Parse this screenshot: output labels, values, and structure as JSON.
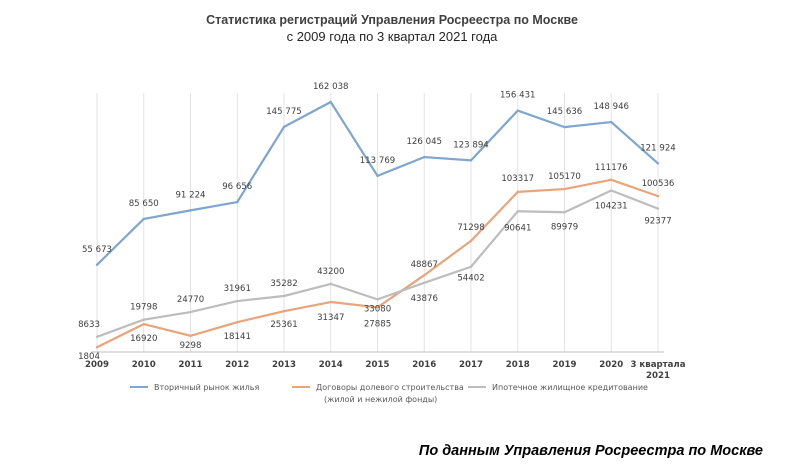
{
  "chart_data": {
    "type": "line",
    "title": "Статистика регистраций Управления Росреестра по Москве",
    "subtitle": "с 2009 года по 3 квартал 2021 года",
    "categories": [
      "2009",
      "2010",
      "2011",
      "2012",
      "2013",
      "2014",
      "2015",
      "2016",
      "2017",
      "2018",
      "2019",
      "2020",
      "3 квартала 2021"
    ],
    "series": [
      {
        "name": "Вторичный рынок жилья",
        "color": "#7ea6ce",
        "values": [
          55673,
          85650,
          91224,
          96656,
          145775,
          162038,
          113769,
          126045,
          123894,
          156431,
          145636,
          148946,
          121924
        ],
        "labels": [
          "55 673",
          "85 650",
          "91 224",
          "96 656",
          "145 775",
          "162 038",
          "113 769",
          "126 045",
          "123 894",
          "156 431",
          "145 636",
          "148 946",
          "121 924"
        ]
      },
      {
        "name": "Договоры долевого строительства (жилой и нежилой фонды)",
        "color": "#e8a47a",
        "values": [
          1804,
          16920,
          9298,
          18141,
          25361,
          31347,
          27885,
          48867,
          71298,
          103317,
          105170,
          111176,
          100536
        ],
        "labels": [
          "1804",
          "16920",
          "9298",
          "18141",
          "25361",
          "31347",
          "27885",
          "48867",
          "71298",
          "103317",
          "105170",
          "111176",
          "100536"
        ]
      },
      {
        "name": "Ипотечное жилищное кредитование",
        "color": "#bdbdbd",
        "values": [
          8633,
          19798,
          24770,
          31961,
          35282,
          43200,
          33080,
          43876,
          54402,
          90641,
          89979,
          104231,
          92377
        ],
        "labels": [
          "8633",
          "19798",
          "24770",
          "31961",
          "35282",
          "43200",
          "33080",
          "43876",
          "54402",
          "90641",
          "89979",
          "104231",
          "92377"
        ]
      }
    ],
    "ylim": [
      0,
      162038
    ],
    "grid": "vertical",
    "legend": "bottom"
  },
  "source": "По данным Управления Росреестра по Москве"
}
